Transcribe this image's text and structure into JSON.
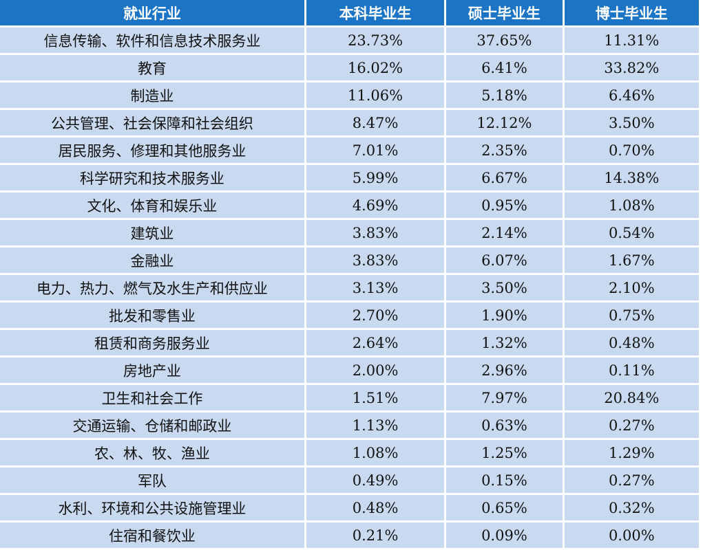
{
  "table": {
    "headers": [
      "就业行业",
      "本科毕业生",
      "硕士毕业生",
      "博士毕业生"
    ],
    "rows": [
      [
        "信息传输、软件和信息技术服务业",
        "23.73%",
        "37.65%",
        "11.31%"
      ],
      [
        "教育",
        "16.02%",
        "6.41%",
        "33.82%"
      ],
      [
        "制造业",
        "11.06%",
        "5.18%",
        "6.46%"
      ],
      [
        "公共管理、社会保障和社会组织",
        "8.47%",
        "12.12%",
        "3.50%"
      ],
      [
        "居民服务、修理和其他服务业",
        "7.01%",
        "2.35%",
        "0.70%"
      ],
      [
        "科学研究和技术服务业",
        "5.99%",
        "6.67%",
        "14.38%"
      ],
      [
        "文化、体育和娱乐业",
        "4.69%",
        "0.95%",
        "1.08%"
      ],
      [
        "建筑业",
        "3.83%",
        "2.14%",
        "0.54%"
      ],
      [
        "金融业",
        "3.83%",
        "6.07%",
        "1.67%"
      ],
      [
        "电力、热力、燃气及水生产和供应业",
        "3.13%",
        "3.50%",
        "2.10%"
      ],
      [
        "批发和零售业",
        "2.70%",
        "1.90%",
        "0.75%"
      ],
      [
        "租赁和商务服务业",
        "2.64%",
        "1.32%",
        "0.48%"
      ],
      [
        "房地产业",
        "2.00%",
        "2.96%",
        "0.11%"
      ],
      [
        "卫生和社会工作",
        "1.51%",
        "7.97%",
        "20.84%"
      ],
      [
        "交通运输、仓储和邮政业",
        "1.13%",
        "0.63%",
        "0.27%"
      ],
      [
        "农、林、牧、渔业",
        "1.08%",
        "1.25%",
        "1.29%"
      ],
      [
        "军队",
        "0.49%",
        "0.15%",
        "0.27%"
      ],
      [
        "水利、环境和公共设施管理业",
        "0.48%",
        "0.65%",
        "0.32%"
      ],
      [
        "住宿和餐饮业",
        "0.21%",
        "0.09%",
        "0.00%"
      ]
    ]
  },
  "colors": {
    "header_bg": "#1b74c4",
    "header_text": "#ffffff",
    "cell_bg": "#c9daf0",
    "cell_text": "#111111"
  }
}
